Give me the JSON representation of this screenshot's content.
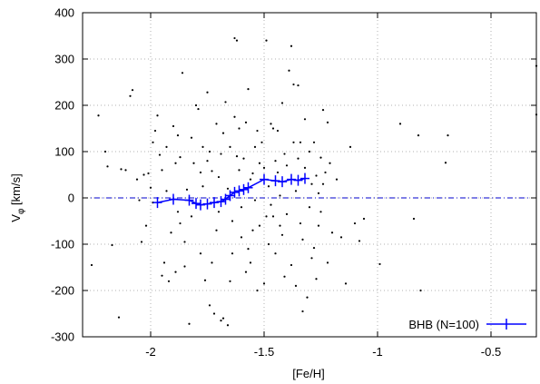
{
  "chart_data": {
    "type": "scatter",
    "xlabel": "[Fe/H]",
    "ylabel": {
      "main": "V",
      "sub": "φ",
      "unit": " [km/s]"
    },
    "xlim": [
      -2.3,
      -0.3
    ],
    "ylim": [
      -300,
      400
    ],
    "xticks": [
      -2,
      -1.5,
      -1,
      -0.5
    ],
    "xtick_labels": [
      "-2",
      "-1.5",
      "-1",
      "-0.5"
    ],
    "yticks": [
      -300,
      -200,
      -100,
      0,
      100,
      200,
      300,
      400
    ],
    "ytick_labels": [
      "-300",
      "-200",
      "-100",
      "0",
      "100",
      "200",
      "300",
      "400"
    ],
    "grid": true,
    "grid_style": "dotted",
    "zero_line": {
      "y": 0,
      "color": "#0000cc",
      "style": "dash-dot"
    },
    "legend": {
      "label": "BHB (N=100)",
      "position": "bottom-right",
      "color": "#0000ff"
    },
    "series": [
      {
        "name": "BHB (N=100)",
        "kind": "binned-mean",
        "color": "#0000ff",
        "points": [
          [
            -1.97,
            -10
          ],
          [
            -1.9,
            -3
          ],
          [
            -1.83,
            -5
          ],
          [
            -1.8,
            -12
          ],
          [
            -1.78,
            -15
          ],
          [
            -1.75,
            -13
          ],
          [
            -1.72,
            -10
          ],
          [
            -1.69,
            -8
          ],
          [
            -1.67,
            -3
          ],
          [
            -1.65,
            5
          ],
          [
            -1.63,
            12
          ],
          [
            -1.61,
            15
          ],
          [
            -1.59,
            18
          ],
          [
            -1.57,
            22
          ],
          [
            -1.5,
            40
          ],
          [
            -1.45,
            37
          ],
          [
            -1.42,
            35
          ],
          [
            -1.38,
            40
          ],
          [
            -1.35,
            38
          ],
          [
            -1.32,
            42
          ]
        ]
      },
      {
        "kind": "individual-stars",
        "color": "#000000",
        "points": [
          [
            -2.26,
            -145
          ],
          [
            -2.23,
            178
          ],
          [
            -2.2,
            100
          ],
          [
            -2.19,
            68
          ],
          [
            -2.17,
            -102
          ],
          [
            -2.14,
            -258
          ],
          [
            -2.13,
            62
          ],
          [
            -2.11,
            60
          ],
          [
            -2.09,
            220
          ],
          [
            -2.08,
            233
          ],
          [
            -2.06,
            40
          ],
          [
            -2.05,
            -5
          ],
          [
            -2.04,
            -95
          ],
          [
            -2.03,
            50
          ],
          [
            -2.01,
            53
          ],
          [
            -2.0,
            22
          ],
          [
            -1.99,
            -10
          ],
          [
            -1.98,
            145
          ],
          [
            -1.97,
            178
          ],
          [
            -1.96,
            93
          ],
          [
            -1.95,
            -168
          ],
          [
            -1.94,
            -140
          ],
          [
            -1.93,
            110
          ],
          [
            -1.92,
            -180
          ],
          [
            -1.91,
            -75
          ],
          [
            -1.9,
            155
          ],
          [
            -1.89,
            -160
          ],
          [
            -1.88,
            135
          ],
          [
            -1.87,
            88
          ],
          [
            -1.86,
            270
          ],
          [
            -1.85,
            -148
          ],
          [
            -1.84,
            18
          ],
          [
            -1.83,
            -272
          ],
          [
            -1.82,
            -40
          ],
          [
            -1.81,
            75
          ],
          [
            -1.8,
            200
          ],
          [
            -1.79,
            192
          ],
          [
            -1.78,
            -120
          ],
          [
            -1.77,
            110
          ],
          [
            -1.76,
            -178
          ],
          [
            -1.75,
            228
          ],
          [
            -1.74,
            -232
          ],
          [
            -1.73,
            58
          ],
          [
            -1.72,
            -250
          ],
          [
            -1.71,
            160
          ],
          [
            -1.7,
            45
          ],
          [
            -1.69,
            -265
          ],
          [
            -1.68,
            -260
          ],
          [
            -1.67,
            207
          ],
          [
            -1.66,
            -275
          ],
          [
            -1.65,
            110
          ],
          [
            -1.64,
            -50
          ],
          [
            -1.63,
            345
          ],
          [
            -1.62,
            340
          ],
          [
            -1.61,
            150
          ],
          [
            -1.6,
            -85
          ],
          [
            -1.59,
            85
          ],
          [
            -1.58,
            163
          ],
          [
            -1.57,
            235
          ],
          [
            -1.56,
            -140
          ],
          [
            -1.55,
            53
          ],
          [
            -1.54,
            -5
          ],
          [
            -1.53,
            -200
          ],
          [
            -1.52,
            75
          ],
          [
            -1.51,
            120
          ],
          [
            -1.5,
            -185
          ],
          [
            -1.49,
            340
          ],
          [
            -1.48,
            25
          ],
          [
            -1.47,
            -15
          ],
          [
            -1.46,
            150
          ],
          [
            -1.45,
            -120
          ],
          [
            -1.44,
            55
          ],
          [
            -1.43,
            5
          ],
          [
            -1.42,
            205
          ],
          [
            -1.41,
            95
          ],
          [
            -1.4,
            -35
          ],
          [
            -1.39,
            275
          ],
          [
            -1.38,
            328
          ],
          [
            -1.37,
            245
          ],
          [
            -1.36,
            -190
          ],
          [
            -1.35,
            243
          ],
          [
            -1.34,
            120
          ],
          [
            -1.33,
            -245
          ],
          [
            -1.32,
            170
          ],
          [
            -1.31,
            -215
          ],
          [
            -1.3,
            100
          ],
          [
            -1.29,
            -130
          ],
          [
            -1.28,
            -108
          ],
          [
            -1.27,
            48
          ],
          [
            -1.26,
            10
          ],
          [
            -1.25,
            87
          ],
          [
            -1.24,
            190
          ],
          [
            -1.22,
            163
          ],
          [
            -1.21,
            75
          ],
          [
            -1.2,
            -75
          ],
          [
            -1.18,
            40
          ],
          [
            -1.16,
            -85
          ],
          [
            -1.14,
            -185
          ],
          [
            -1.12,
            110
          ],
          [
            -1.1,
            -55
          ],
          [
            -1.08,
            -93
          ],
          [
            -1.06,
            -45
          ],
          [
            -0.99,
            -143
          ],
          [
            -0.9,
            160
          ],
          [
            -0.84,
            -45
          ],
          [
            -0.82,
            135
          ],
          [
            -0.81,
            -200
          ],
          [
            -0.7,
            76
          ],
          [
            -0.69,
            135
          ],
          [
            -0.3,
            285
          ],
          [
            -0.3,
            180
          ],
          [
            -1.95,
            60
          ],
          [
            -1.88,
            -30
          ],
          [
            -1.82,
            130
          ],
          [
            -1.78,
            55
          ],
          [
            -1.74,
            100
          ],
          [
            -1.71,
            -70
          ],
          [
            -1.68,
            140
          ],
          [
            -1.66,
            20
          ],
          [
            -1.64,
            -120
          ],
          [
            -1.62,
            90
          ],
          [
            -1.6,
            -20
          ],
          [
            -1.58,
            -160
          ],
          [
            -1.56,
            40
          ],
          [
            -1.54,
            110
          ],
          [
            -1.52,
            -60
          ],
          [
            -1.5,
            65
          ],
          [
            -1.48,
            -100
          ],
          [
            -1.46,
            -40
          ],
          [
            -1.44,
            145
          ],
          [
            -1.42,
            -80
          ],
          [
            -1.4,
            70
          ],
          [
            -1.38,
            -145
          ],
          [
            -1.36,
            15
          ],
          [
            -1.34,
            -55
          ],
          [
            -1.32,
            65
          ],
          [
            -1.3,
            -20
          ],
          [
            -1.28,
            120
          ],
          [
            -1.26,
            -60
          ],
          [
            -1.24,
            30
          ],
          [
            -1.22,
            -140
          ],
          [
            -2.02,
            -60
          ],
          [
            -1.99,
            120
          ],
          [
            -1.93,
            15
          ],
          [
            -1.89,
            75
          ],
          [
            -1.85,
            -95
          ],
          [
            -1.81,
            -10
          ],
          [
            -1.77,
            25
          ],
          [
            -1.73,
            -140
          ],
          [
            -1.69,
            95
          ],
          [
            -1.65,
            -180
          ],
          [
            -1.61,
            60
          ],
          [
            -1.57,
            -110
          ],
          [
            -1.53,
            145
          ],
          [
            -1.49,
            -40
          ],
          [
            -1.45,
            80
          ],
          [
            -1.41,
            -170
          ],
          [
            -1.37,
            120
          ],
          [
            -1.33,
            -90
          ],
          [
            -1.29,
            30
          ],
          [
            -1.25,
            -30
          ],
          [
            -1.87,
            -55
          ],
          [
            -1.75,
            80
          ],
          [
            -1.7,
            -30
          ],
          [
            -1.63,
            175
          ],
          [
            -1.55,
            -70
          ],
          [
            -1.47,
            160
          ],
          [
            -1.43,
            -60
          ],
          [
            -1.35,
            85
          ],
          [
            -1.27,
            -175
          ],
          [
            -1.23,
            55
          ]
        ]
      }
    ]
  }
}
